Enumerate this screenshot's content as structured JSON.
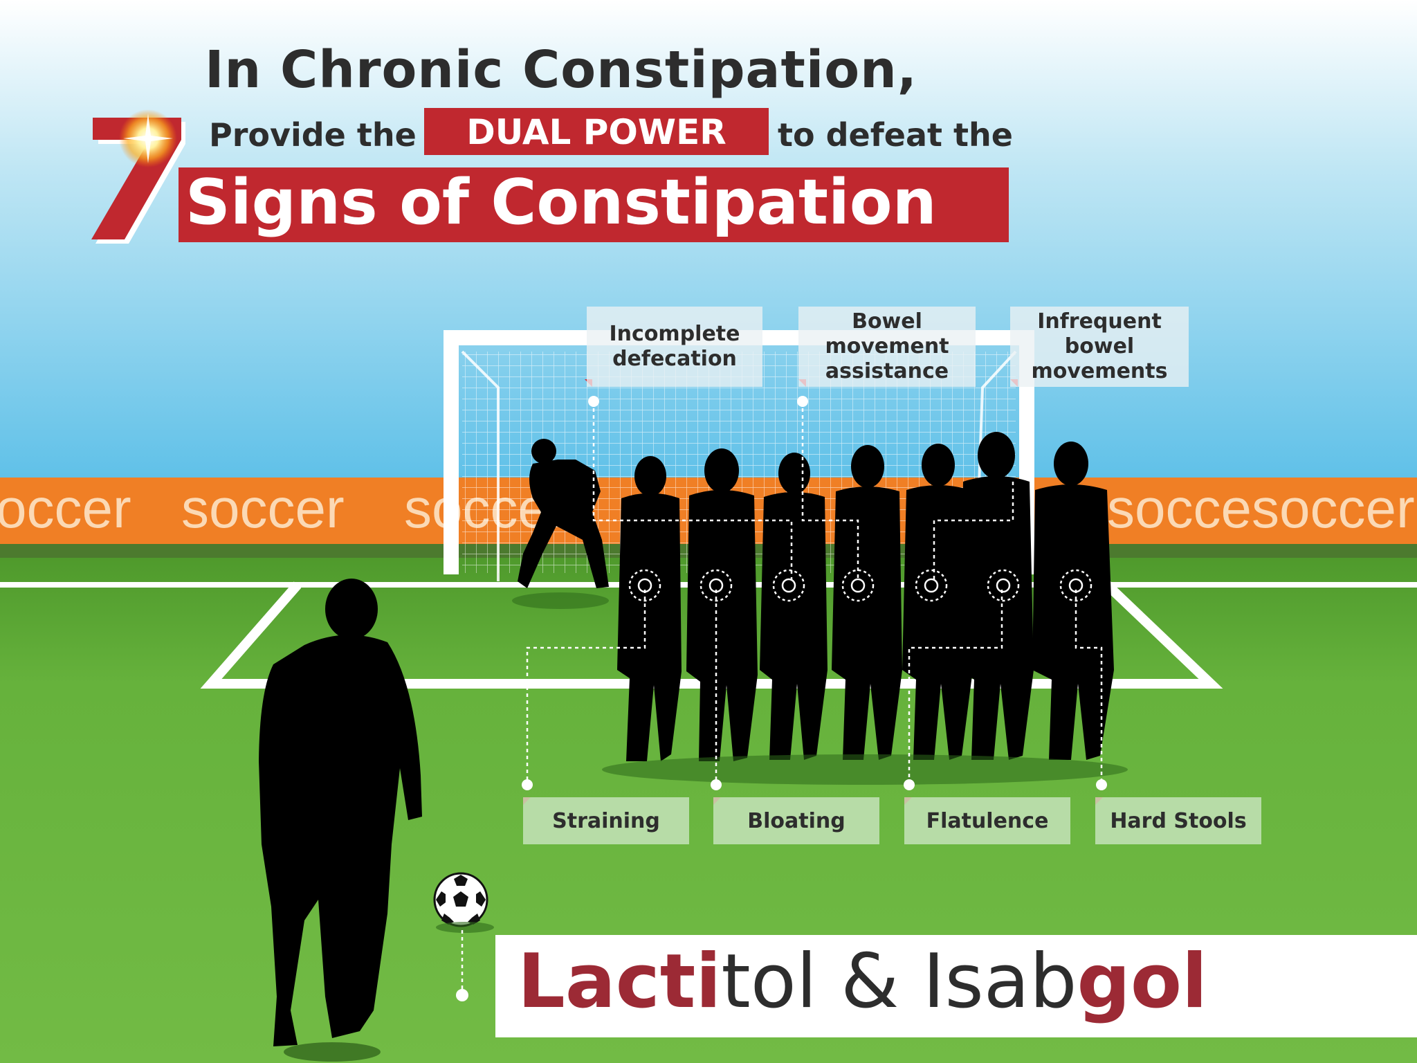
{
  "header": {
    "line1": "In Chronic Constipation,",
    "line2_pre": "Provide the",
    "line2_highlight": "DUAL POWER",
    "line2_post": "to defeat the",
    "big_number": "7",
    "line3": "Signs of Constipation"
  },
  "banner": {
    "words": [
      "occer",
      "soccer",
      "soccer",
      "soccesoccer"
    ]
  },
  "signs": {
    "top": [
      {
        "label": "Incomplete\ndefecation"
      },
      {
        "label": "Bowel\nmovement\nassistance"
      },
      {
        "label": "Infrequent\nbowel\nmovements"
      }
    ],
    "bottom": [
      {
        "label": "Straining"
      },
      {
        "label": "Bloating"
      },
      {
        "label": "Flatulence"
      },
      {
        "label": "Hard Stools"
      }
    ]
  },
  "product": {
    "part1": "Lacti",
    "part2": "tol & Isab",
    "part3": "gol"
  },
  "colors": {
    "brand_red": "#c0282f",
    "product_red": "#9c2a35",
    "banner_orange": "#f07f25",
    "pitch_green": "#68b23a",
    "sky_blue": "#63c1e6",
    "text_dark": "#2d2d2d"
  },
  "icons": [
    "soccer-ball-icon",
    "sparkle-icon"
  ]
}
